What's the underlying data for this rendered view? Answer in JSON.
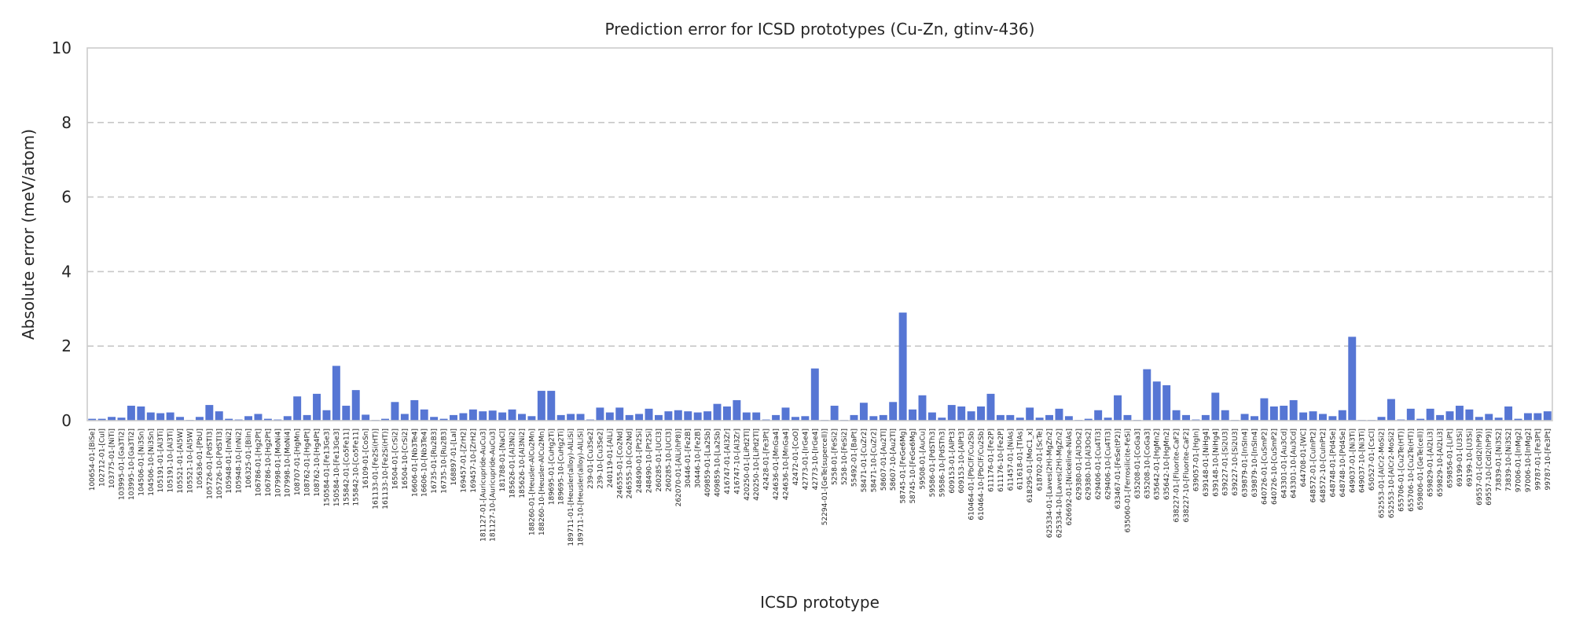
{
  "chart_data": {
    "type": "bar",
    "title": "Prediction error for ICSD prototypes (Cu-Zn, gtinv-436)",
    "xlabel": "ICSD prototype",
    "ylabel": "Absolute error (meV/atom)",
    "ylim": [
      0,
      10
    ],
    "yticks": [
      0,
      2,
      4,
      6,
      8,
      10
    ],
    "grid": "y-dashed",
    "bar_color": "#5676d4",
    "categories": [
      "100654-01-[BiSe]",
      "102712-01-[CuI]",
      "103775-01-[NiTi]",
      "103995-01-[Ga3Ti2]",
      "103995-10-[Ga3Ti2]",
      "104506-01-[Ni3Sn]",
      "104506-10-[Ni3Sn]",
      "105191-01-[Al3Ti]",
      "105191-10-[Al3Ti]",
      "105521-01-[Al5W]",
      "105521-10-[Al5W]",
      "105636-01-[PbU]",
      "105726-01-[PdSTl3]",
      "105726-10-[PdSTl3]",
      "105948-01-[InNi2]",
      "105948-10-[InNi2]",
      "106325-01-[BiIn]",
      "106786-01-[Hg2Pt]",
      "106786-10-[Hg2Pt]",
      "107998-01-[MoNi4]",
      "107998-10-[MoNi4]",
      "108707-01-[HgMn]",
      "108762-01-[Hg4Pt]",
      "108762-10-[Hg4Pt]",
      "150584-01-[Fe13Ge3]",
      "150584-10-[Fe13Ge3]",
      "155842-01-[Co5Fe11]",
      "155842-10-[Co5Fe11]",
      "16109-01-[CoSn]",
      "161133-01-[Fe2Si(HT)]",
      "161133-10-[Fe2Si(HT)]",
      "16504-01-[CrSi2]",
      "16504-10-[CrSi2]",
      "16606-01-[Nb3Te4]",
      "16606-10-[Nb3Te4]",
      "16735-01-[Ru2B3]",
      "16735-10-[Ru2B3]",
      "168897-01-[LaI]",
      "169457-01-[ZrH2]",
      "169457-10-[ZrH2]",
      "181127-01-[Auricupride-AuCu3]",
      "181127-10-[Auricupride-AuCu3]",
      "181788-01-[NaCl]",
      "185626-01-[Al3Ni2]",
      "185626-10-[Al3Ni2]",
      "188260-01-[Heusler-AlCu2Mn]",
      "188260-10-[Heusler-AlCu2Mn]",
      "189695-01-[CuHg2Ti]",
      "189695-10-[CuHg2Ti]",
      "189711-01-[Heusler(alloy)-AlLiSi]",
      "189711-10-[Heusler(alloy)-AlLiSi]",
      "239-01-[Cu3Se2]",
      "239-10-[Cu3Se2]",
      "240119-01-[AlLi]",
      "246555-01-[Co2Nd]",
      "246555-10-[Co2Nd]",
      "248490-01-[Pt2Si]",
      "248490-10-[Pt2Si]",
      "260285-01-[UCl3]",
      "260285-10-[UCl3]",
      "262070-01-[AlLi(hP8)]",
      "30446-01-[Fe2B]",
      "30446-10-[Fe2B]",
      "409859-01-[La2Sb]",
      "409859-10-[La2Sb]",
      "416747-01-[Al3Zr]",
      "416747-10-[Al3Zr]",
      "420250-01-[LiPd2Tl]",
      "420250-10-[LiPd2Tl]",
      "42428-01-[Fe3Pt]",
      "424636-01-[MnGa4]",
      "424636-10-[MnGa4]",
      "42472-01-[CoO]",
      "42773-01-[IrGe4]",
      "42773-10-[IrGe4]",
      "52294-01-[GeTe(supercell)]",
      "5258-01-[FeSi2]",
      "5258-10-[FeSi2]",
      "55492-01-[BaPt]",
      "58471-01-[CuZr2]",
      "58471-10-[CuZr2]",
      "58607-01-[Au2Tl]",
      "58607-10-[Au2Tl]",
      "58745-01-[FeGe6Mg]",
      "58745-10-[FeGe6Mg]",
      "59508-01-[AuCu]",
      "59586-01-[PdSTh3]",
      "59586-10-[PdSTh3]",
      "609153-01-[AlPt3]",
      "609153-10-[AlPt3]",
      "610464-01-[PbClF/Cu2Sb]",
      "610464-10-[PbClF/Cu2Sb]",
      "611176-01-[Fe2P]",
      "611176-10-[Fe2P]",
      "611457-01-[NiAs]",
      "611618-01-[TlAs]",
      "618295-01-[MoC1_x]",
      "618702-01-[ScTe]",
      "625334-01-[Laves(2H)-MgZn2]",
      "625334-10-[Laves(2H)-MgZn2]",
      "626692-01-[Nickeline-NiAs]",
      "629380-01-[Al3Os2]",
      "629380-10-[Al3Os2]",
      "629406-01-[Cu4Ti3]",
      "629406-10-[Cu4Ti3]",
      "633467-01-[FeSe(tP2)]",
      "635060-01-[Ferrosilicite-FeSi]",
      "635208-01-[CoGa3]",
      "635208-10-[CoGa3]",
      "635642-01-[HgMn2]",
      "635642-10-[HgMn2]",
      "638227-01-[Fluorite-CaF2]",
      "638227-10-[Fluorite-CaF2]",
      "639057-01-[HgIn]",
      "639148-01-[NiHg4]",
      "639148-10-[NiHg4]",
      "639227-01-[Si2U3]",
      "639227-10-[Si2U3]",
      "639879-01-[InSIn4]",
      "639879-10-[InSIn4]",
      "640726-01-[CuSmP2]",
      "640726-10-[CuSmP2]",
      "643301-01-[Au3Cd]",
      "643301-10-[Au3Cd]",
      "644708-01-[WC]",
      "648572-01-[CuInPt2]",
      "648572-10-[CuInPt2]",
      "648748-01-[Pd4Se]",
      "648748-10-[Pd4Se]",
      "649037-01-[Ni3Ti]",
      "649037-10-[Ni3Ti]",
      "650527-01-[CsCl]",
      "652553-01-[AlCr2-MoSi2]",
      "652553-10-[AlCr2-MoSi2]",
      "655706-01-[Cu2Te(HT)]",
      "655706-10-[Cu2Te(HT)]",
      "659806-01-[GeTe(cell)]",
      "659829-01-[Al2Li3]",
      "659829-10-[Al2Li3]",
      "659856-01-[LiPt]",
      "69199-01-[U3Si]",
      "69199-10-[U3Si]",
      "69557-01-[CdI2(hP9)]",
      "69557-10-[CdI2(hP9)]",
      "73839-01-[Ni3S2]",
      "73839-10-[Ni3S2]",
      "97006-01-[InMg2]",
      "97006-10-[InMg2]",
      "99787-01-[Fe3Pt]",
      "99787-10-[Fe3Pt]"
    ],
    "values": [
      0.05,
      0.05,
      0.1,
      0.08,
      0.4,
      0.38,
      0.22,
      0.2,
      0.22,
      0.1,
      0.02,
      0.1,
      0.42,
      0.25,
      0.05,
      0.03,
      0.12,
      0.18,
      0.05,
      0.03,
      0.12,
      0.65,
      0.15,
      0.72,
      0.28,
      1.47,
      0.4,
      0.82,
      0.16,
      0.02,
      0.05,
      0.5,
      0.18,
      0.55,
      0.3,
      0.1,
      0.05,
      0.15,
      0.2,
      0.3,
      0.25,
      0.27,
      0.22,
      0.3,
      0.18,
      0.12,
      0.8,
      0.8,
      0.15,
      0.18,
      0.18,
      0.03,
      0.35,
      0.22,
      0.35,
      0.15,
      0.18,
      0.32,
      0.15,
      0.25,
      0.28,
      0.25,
      0.22,
      0.25,
      0.45,
      0.38,
      0.55,
      0.22,
      0.22,
      0.03,
      0.15,
      0.35,
      0.1,
      0.12,
      1.4,
      0.02,
      0.4,
      0.02,
      0.15,
      0.48,
      0.12,
      0.15,
      0.5,
      2.9,
      0.3,
      0.68,
      0.22,
      0.08,
      0.42,
      0.38,
      0.25,
      0.38,
      0.72,
      0.15,
      0.15,
      0.08,
      0.35,
      0.08,
      0.15,
      0.32,
      0.12,
      0.02,
      0.05,
      0.28,
      0.08,
      0.68,
      0.15,
      0.02,
      1.38,
      1.05,
      0.95,
      0.28,
      0.15,
      0.03,
      0.15,
      0.75,
      0.28,
      0.02,
      0.18,
      0.12,
      0.6,
      0.38,
      0.4,
      0.55,
      0.22,
      0.25,
      0.18,
      0.12,
      0.28,
      2.25,
      0.02,
      0.02,
      0.1,
      0.58,
      0.03,
      0.32,
      0.05,
      0.32,
      0.15,
      0.25,
      0.4,
      0.3,
      0.1,
      0.18,
      0.08,
      0.38,
      0.05,
      0.2,
      0.2,
      0.25
    ]
  }
}
